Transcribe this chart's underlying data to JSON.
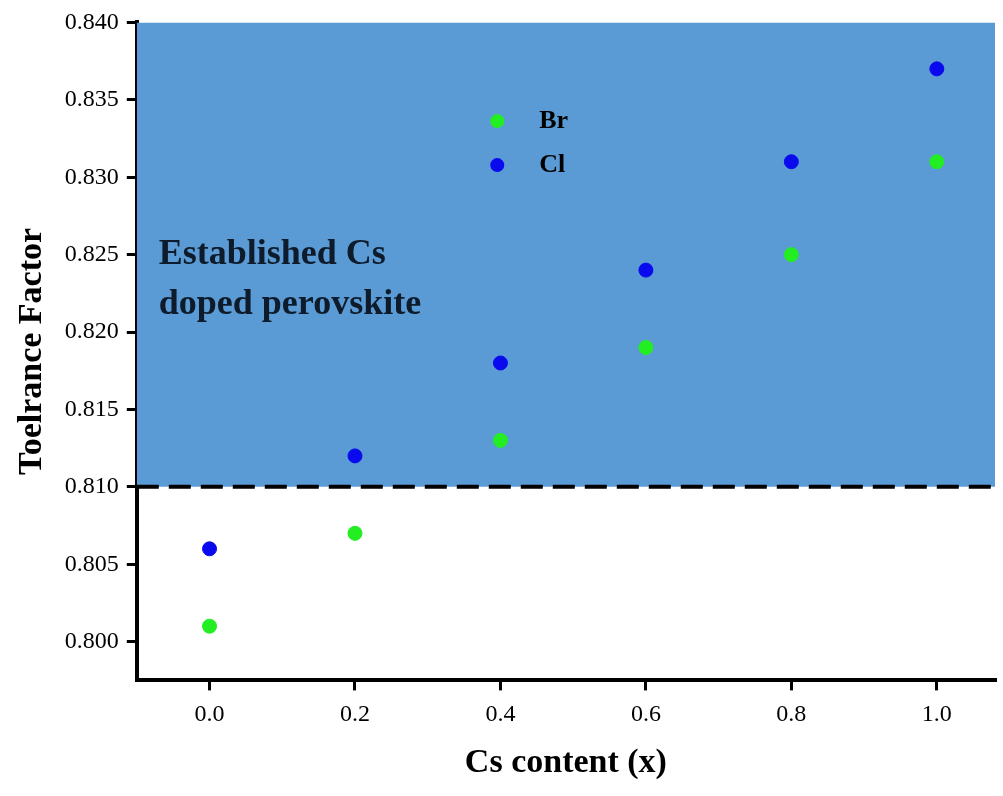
{
  "chart_data": {
    "type": "scatter",
    "xlabel": "Cs content (x)",
    "ylabel": "Toelrance Factor",
    "xlim": [
      -0.1,
      1.08
    ],
    "xticks": [
      {
        "value": 0,
        "label": "0.0"
      },
      0.2,
      0.4,
      0.6,
      0.8,
      {
        "value": 1,
        "label": "1.0"
      }
    ],
    "ylim": [
      0.7975,
      0.84
    ],
    "yticks": [
      {
        "value": 0.8,
        "label": "0.800"
      },
      0.805,
      {
        "value": 0.81,
        "label": "0.810"
      },
      0.815,
      {
        "value": 0.82,
        "label": "0.820"
      },
      0.825,
      {
        "value": 0.83,
        "label": "0.830"
      },
      0.835,
      {
        "value": 0.84,
        "label": "0.840"
      }
    ],
    "series": [
      {
        "name": "Br",
        "color": "#22ee22",
        "x": [
          0,
          0.2,
          0.4,
          0.6,
          0.8,
          1
        ],
        "values": [
          0.801,
          0.807,
          0.813,
          0.819,
          0.825,
          0.831
        ]
      },
      {
        "name": "Cl",
        "color": "#0a0aee",
        "x": [
          0,
          0.2,
          0.4,
          0.6,
          0.8,
          1
        ],
        "values": [
          0.806,
          0.812,
          0.818,
          0.824,
          0.831,
          0.837
        ]
      }
    ],
    "bands": [
      {
        "axis": "y",
        "from": 0.81,
        "to": 0.84,
        "label": "Established Cs doped perovskite",
        "color": "#5b9bd5"
      }
    ],
    "ref_lines": [
      {
        "axis": "y",
        "value": 0.81,
        "line_style": "dashed",
        "color": "#000000"
      }
    ],
    "marker": "circle",
    "grid": false,
    "legend": "top"
  }
}
